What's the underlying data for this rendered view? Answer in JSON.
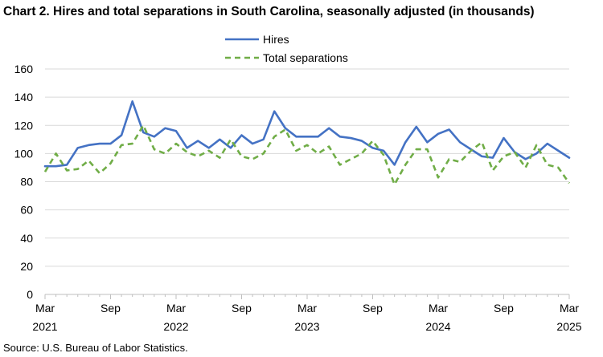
{
  "chart_data": {
    "type": "line",
    "title": "Chart 2. Hires and total separations in South Carolina, seasonally adjusted (in thousands)",
    "source": "Source: U.S. Bureau of Labor Statistics.",
    "ylim": [
      0,
      160
    ],
    "yticks": [
      0,
      20,
      40,
      60,
      80,
      100,
      120,
      140,
      160
    ],
    "x_tick_labels": [
      {
        "month": "Mar",
        "year": "2021",
        "index": 0
      },
      {
        "month": "Sep",
        "year": "",
        "index": 6
      },
      {
        "month": "Mar",
        "year": "2022",
        "index": 12
      },
      {
        "month": "Sep",
        "year": "",
        "index": 18
      },
      {
        "month": "Mar",
        "year": "2023",
        "index": 24
      },
      {
        "month": "Sep",
        "year": "",
        "index": 30
      },
      {
        "month": "Mar",
        "year": "2024",
        "index": 36
      },
      {
        "month": "Sep",
        "year": "",
        "index": 42
      },
      {
        "month": "Mar",
        "year": "2025",
        "index": 48
      }
    ],
    "grid": "horizontal",
    "legend": "top-center",
    "series": [
      {
        "name": "Hires",
        "color": "#4472C4",
        "style": "solid",
        "values": [
          91,
          91,
          92,
          104,
          106,
          107,
          107,
          113,
          137,
          115,
          112,
          118,
          116,
          104,
          109,
          104,
          110,
          104,
          113,
          107,
          110,
          130,
          118,
          112,
          112,
          112,
          118,
          112,
          111,
          109,
          104,
          102,
          92,
          108,
          119,
          108,
          114,
          117,
          108,
          103,
          98,
          97,
          111,
          101,
          96,
          100,
          107,
          102,
          97
        ]
      },
      {
        "name": "Total separations",
        "color": "#70AD47",
        "style": "dashed",
        "values": [
          87,
          100,
          88,
          89,
          95,
          86,
          93,
          106,
          107,
          120,
          103,
          100,
          107,
          101,
          98,
          102,
          97,
          110,
          98,
          96,
          100,
          112,
          117,
          102,
          106,
          100,
          105,
          92,
          96,
          100,
          109,
          99,
          78,
          92,
          103,
          103,
          83,
          96,
          94,
          102,
          108,
          88,
          98,
          101,
          90,
          106,
          92,
          90,
          79
        ]
      }
    ]
  }
}
